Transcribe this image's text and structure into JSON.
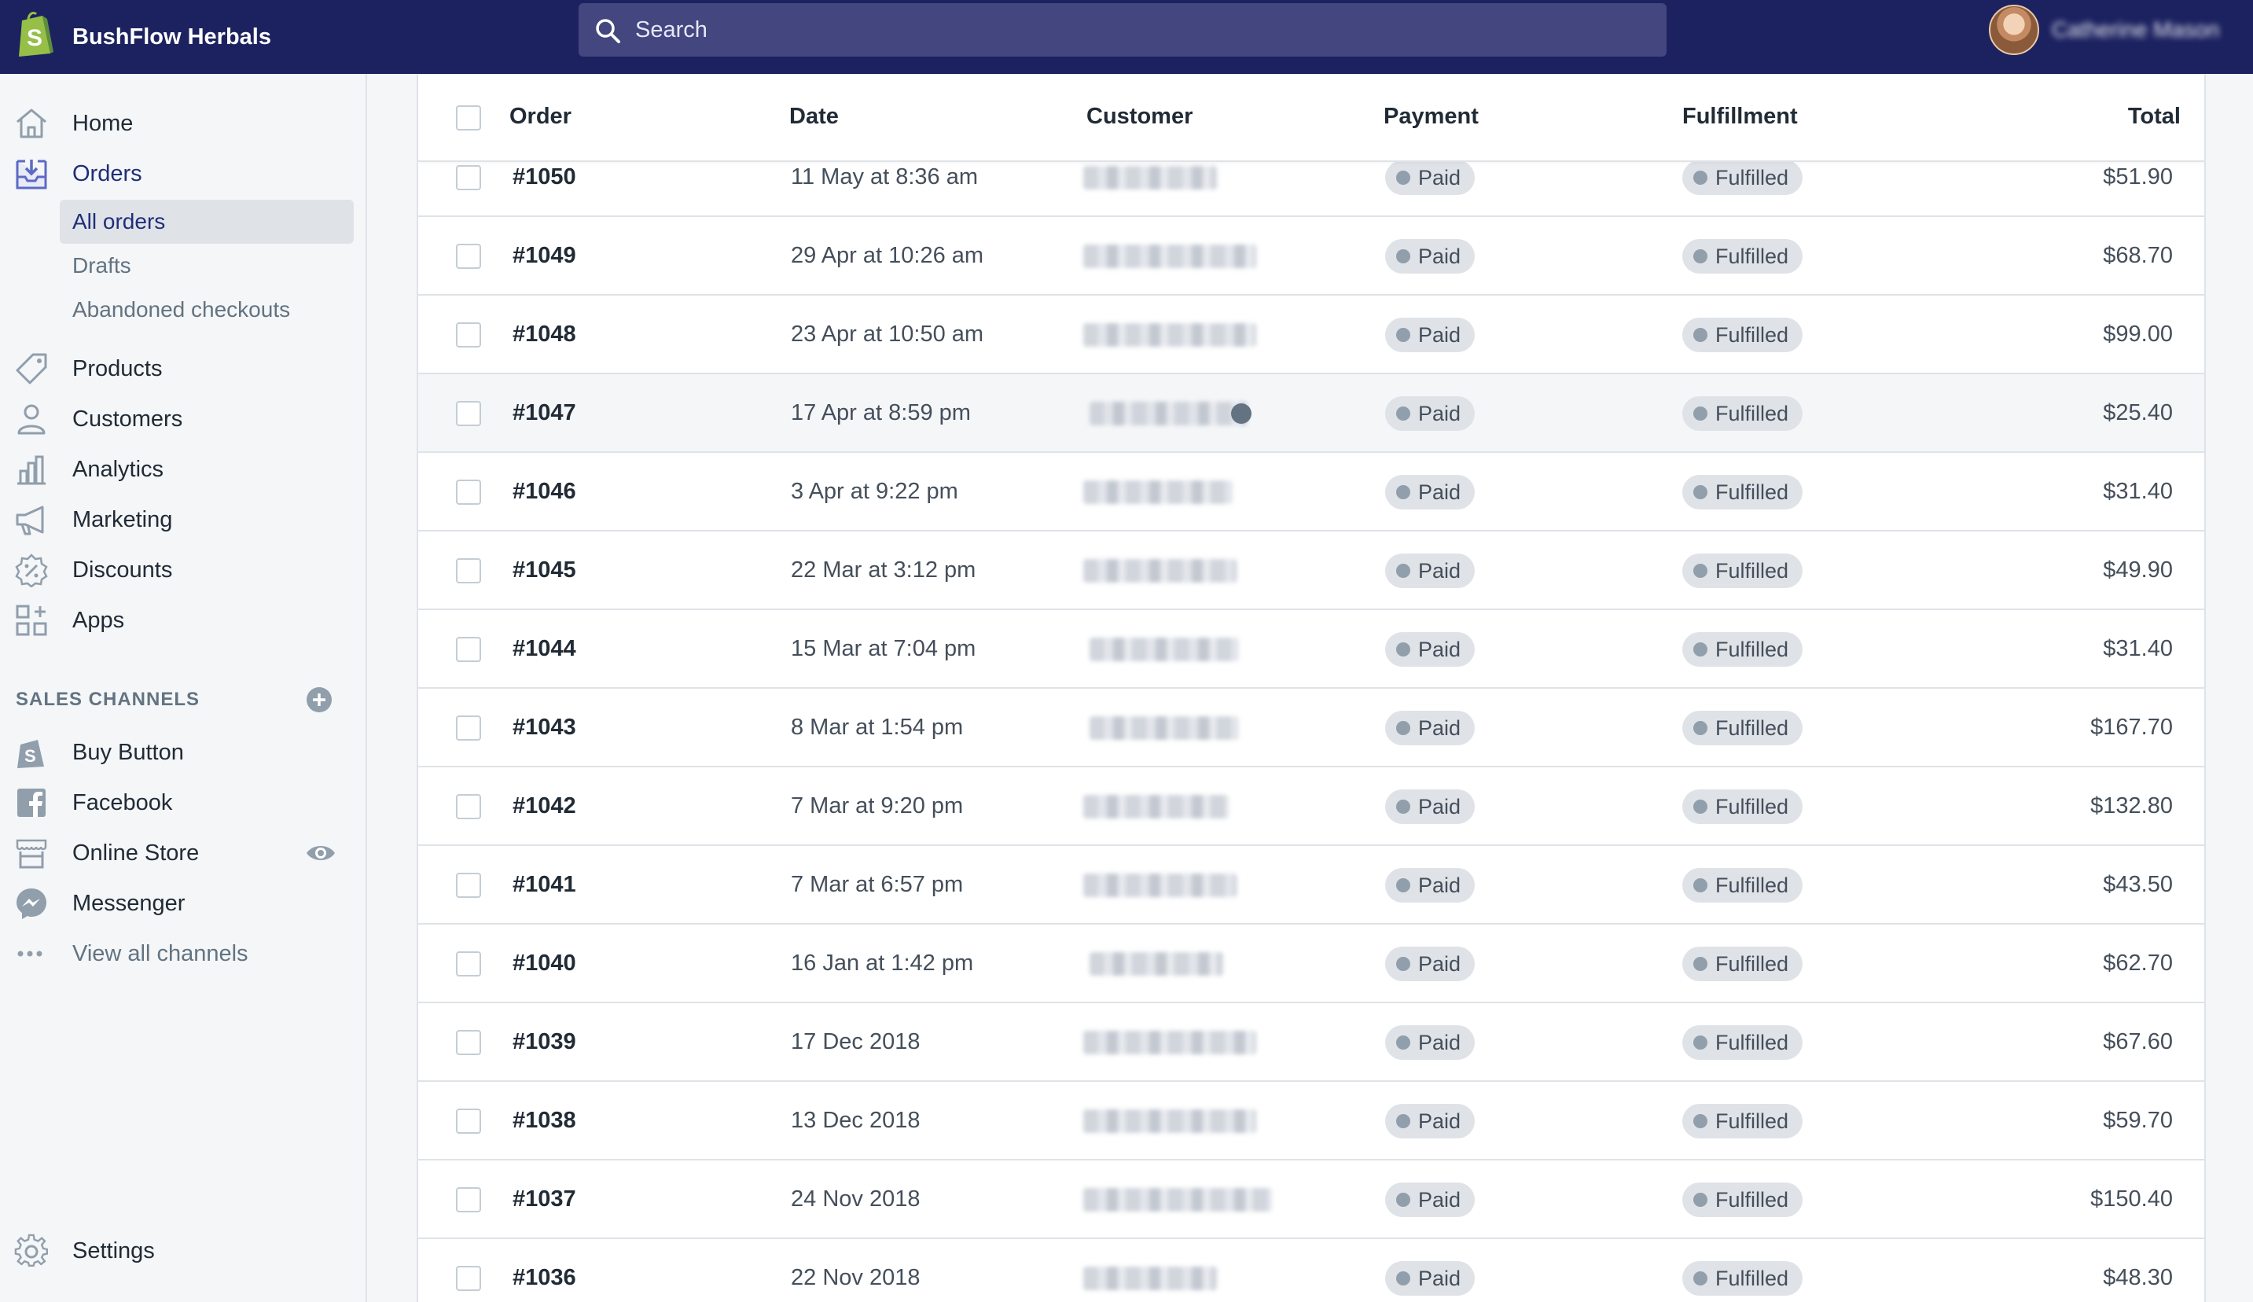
{
  "store": {
    "name": "BushFlow Herbals"
  },
  "search": {
    "placeholder": "Search"
  },
  "user": {
    "name": "Catherine Mason"
  },
  "sidebar": {
    "items": [
      {
        "label": "Home",
        "icon": "home-icon"
      },
      {
        "label": "Orders",
        "icon": "orders-icon"
      },
      {
        "label": "Products",
        "icon": "tag-icon"
      },
      {
        "label": "Customers",
        "icon": "person-icon"
      },
      {
        "label": "Analytics",
        "icon": "bar-chart-icon"
      },
      {
        "label": "Marketing",
        "icon": "megaphone-icon"
      },
      {
        "label": "Discounts",
        "icon": "discount-icon"
      },
      {
        "label": "Apps",
        "icon": "apps-icon"
      }
    ],
    "orders_sub": [
      {
        "label": "All orders"
      },
      {
        "label": "Drafts"
      },
      {
        "label": "Abandoned checkouts"
      }
    ],
    "sales_channels_title": "SALES CHANNELS",
    "channels": [
      {
        "label": "Buy Button",
        "icon": "buy-button-icon"
      },
      {
        "label": "Facebook",
        "icon": "facebook-icon"
      },
      {
        "label": "Online Store",
        "icon": "store-icon"
      },
      {
        "label": "Messenger",
        "icon": "messenger-icon"
      },
      {
        "label": "View all channels",
        "icon": "more-icon"
      }
    ],
    "settings_label": "Settings"
  },
  "table": {
    "headers": {
      "order": "Order",
      "date": "Date",
      "customer": "Customer",
      "payment": "Payment",
      "fulfillment": "Fulfillment",
      "total": "Total"
    },
    "rows": [
      {
        "order": "#1050",
        "date": "11 May at 8:36 am",
        "payment": "Paid",
        "fulfillment": "Fulfilled",
        "total": "$51.90"
      },
      {
        "order": "#1049",
        "date": "29 Apr at 10:26 am",
        "payment": "Paid",
        "fulfillment": "Fulfilled",
        "total": "$68.70"
      },
      {
        "order": "#1048",
        "date": "23 Apr at 10:50 am",
        "payment": "Paid",
        "fulfillment": "Fulfilled",
        "total": "$99.00"
      },
      {
        "order": "#1047",
        "date": "17 Apr at 8:59 pm",
        "payment": "Paid",
        "fulfillment": "Fulfilled",
        "total": "$25.40"
      },
      {
        "order": "#1046",
        "date": "3 Apr at 9:22 pm",
        "payment": "Paid",
        "fulfillment": "Fulfilled",
        "total": "$31.40"
      },
      {
        "order": "#1045",
        "date": "22 Mar at 3:12 pm",
        "payment": "Paid",
        "fulfillment": "Fulfilled",
        "total": "$49.90"
      },
      {
        "order": "#1044",
        "date": "15 Mar at 7:04 pm",
        "payment": "Paid",
        "fulfillment": "Fulfilled",
        "total": "$31.40"
      },
      {
        "order": "#1043",
        "date": "8 Mar at 1:54 pm",
        "payment": "Paid",
        "fulfillment": "Fulfilled",
        "total": "$167.70"
      },
      {
        "order": "#1042",
        "date": "7 Mar at 9:20 pm",
        "payment": "Paid",
        "fulfillment": "Fulfilled",
        "total": "$132.80"
      },
      {
        "order": "#1041",
        "date": "7 Mar at 6:57 pm",
        "payment": "Paid",
        "fulfillment": "Fulfilled",
        "total": "$43.50"
      },
      {
        "order": "#1040",
        "date": "16 Jan at 1:42 pm",
        "payment": "Paid",
        "fulfillment": "Fulfilled",
        "total": "$62.70"
      },
      {
        "order": "#1039",
        "date": "17 Dec 2018",
        "payment": "Paid",
        "fulfillment": "Fulfilled",
        "total": "$67.60"
      },
      {
        "order": "#1038",
        "date": "13 Dec 2018",
        "payment": "Paid",
        "fulfillment": "Fulfilled",
        "total": "$59.70"
      },
      {
        "order": "#1037",
        "date": "24 Nov 2018",
        "payment": "Paid",
        "fulfillment": "Fulfilled",
        "total": "$150.40"
      },
      {
        "order": "#1036",
        "date": "22 Nov 2018",
        "payment": "Paid",
        "fulfillment": "Fulfilled",
        "total": "$48.30"
      }
    ]
  },
  "colors": {
    "topbar": "#1c2260",
    "search_bg": "#43467f",
    "sidebar_bg": "#f4f6f8",
    "active_nav": "#202e78",
    "badge_bg": "#dfe3e8",
    "logo_green": "#95bf47"
  }
}
